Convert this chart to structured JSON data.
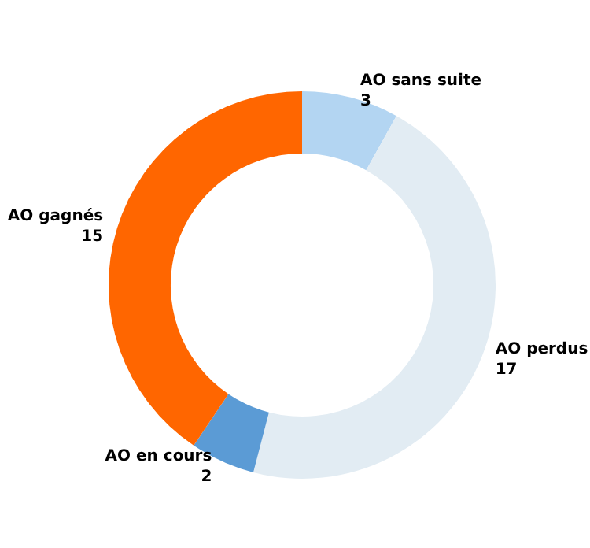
{
  "chart_data": {
    "type": "donut",
    "categories": [
      "AO sans suite",
      "AO perdus",
      "AO en cours",
      "AO gagnés"
    ],
    "values": [
      3,
      17,
      2,
      15
    ],
    "colors": [
      "#b3d5f2",
      "#e2ecf3",
      "#5b9bd5",
      "#ff6600"
    ],
    "data_labels": true,
    "legend": false
  }
}
